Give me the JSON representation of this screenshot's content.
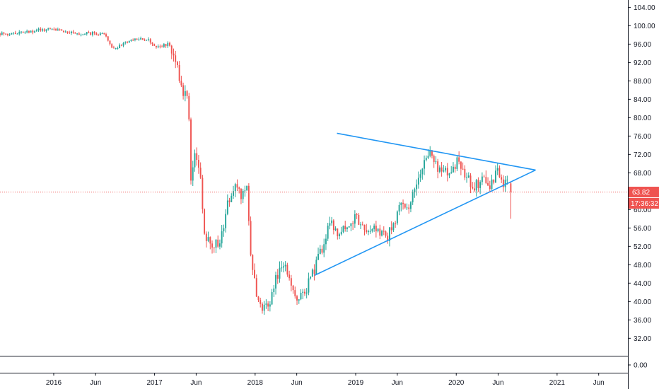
{
  "colors": {
    "up": "#26a69a",
    "down": "#ef5350",
    "trendline": "#2196f3",
    "price_line": "#ef5350",
    "axis_line": "#131722",
    "background": "#ffffff"
  },
  "chart_data": {
    "type": "candlestick",
    "x_axis": {
      "min": "2015-06-20",
      "max": "2021-09-15",
      "ticks": [
        {
          "date": "2016-01-01",
          "label": "2016"
        },
        {
          "date": "2016-06-01",
          "label": "Jun"
        },
        {
          "date": "2017-01-01",
          "label": "2017"
        },
        {
          "date": "2017-06-01",
          "label": "Jun"
        },
        {
          "date": "2018-01-01",
          "label": "2018"
        },
        {
          "date": "2018-06-01",
          "label": "Jun"
        },
        {
          "date": "2019-01-01",
          "label": "2019"
        },
        {
          "date": "2019-06-01",
          "label": "Jun"
        },
        {
          "date": "2020-01-01",
          "label": "2020"
        },
        {
          "date": "2020-06-01",
          "label": "Jun"
        },
        {
          "date": "2021-01-01",
          "label": "2021"
        },
        {
          "date": "2021-06-01",
          "label": "Jun"
        }
      ]
    },
    "y_axis": {
      "range": [
        28.2,
        105.6
      ],
      "ticks": [
        "104.00",
        "100.00",
        "96.00",
        "92.00",
        "88.00",
        "84.00",
        "80.00",
        "76.00",
        "72.00",
        "68.00",
        "64.00",
        "60.00",
        "56.00",
        "52.00",
        "48.00",
        "44.00",
        "40.00",
        "36.00",
        "32.00"
      ]
    },
    "sub_axis": {
      "tick": "0.00"
    },
    "last_price": {
      "value": 63.82,
      "label": "63.82",
      "countdown": "17:36:32"
    },
    "trendlines": [
      {
        "name": "upper",
        "from": {
          "date": "2018-10-25",
          "value": 76.6
        },
        "to": {
          "date": "2020-10-15",
          "value": 68.6
        }
      },
      {
        "name": "lower",
        "from": {
          "date": "2018-08-05",
          "value": 45.7
        },
        "to": {
          "date": "2020-10-15",
          "value": 68.6
        }
      }
    ],
    "anchors": [
      [
        "2015-06-20",
        98.3
      ],
      [
        "2015-08-01",
        98.3
      ],
      [
        "2015-10-01",
        98.7
      ],
      [
        "2015-12-01",
        99.2
      ],
      [
        "2016-02-01",
        99.0
      ],
      [
        "2016-04-01",
        98.2
      ],
      [
        "2016-06-01",
        98.4
      ],
      [
        "2016-07-10",
        98.0
      ],
      [
        "2016-08-10",
        95.0
      ],
      [
        "2016-10-20",
        97.0
      ],
      [
        "2016-12-10",
        97.2
      ],
      [
        "2017-01-10",
        95.3
      ],
      [
        "2017-03-01",
        96.0
      ],
      [
        "2017-03-25",
        92.0
      ],
      [
        "2017-04-10",
        88.0
      ],
      [
        "2017-04-20",
        84.0
      ],
      [
        "2017-05-10",
        86.0
      ],
      [
        "2017-05-20",
        66.0
      ],
      [
        "2017-05-30",
        72.0
      ],
      [
        "2017-06-20",
        70.0
      ],
      [
        "2017-07-05",
        55.0
      ],
      [
        "2017-07-25",
        53.0
      ],
      [
        "2017-09-01",
        52.0
      ],
      [
        "2017-10-01",
        62.0
      ],
      [
        "2017-11-01",
        65.0
      ],
      [
        "2017-11-20",
        63.0
      ],
      [
        "2017-12-10",
        66.0
      ],
      [
        "2017-12-25",
        47.0
      ],
      [
        "2018-01-10",
        43.0
      ],
      [
        "2018-02-01",
        37.5
      ],
      [
        "2018-03-01",
        40.0
      ],
      [
        "2018-03-25",
        45.0
      ],
      [
        "2018-04-25",
        48.5
      ],
      [
        "2018-05-20",
        42.0
      ],
      [
        "2018-06-15",
        40.0
      ],
      [
        "2018-07-10",
        42.5
      ],
      [
        "2018-08-10",
        47.0
      ],
      [
        "2018-09-10",
        52.0
      ],
      [
        "2018-10-10",
        58.0
      ],
      [
        "2018-11-01",
        54.0
      ],
      [
        "2018-12-15",
        57.0
      ],
      [
        "2019-01-10",
        59.0
      ],
      [
        "2019-02-10",
        54.5
      ],
      [
        "2019-03-20",
        56.0
      ],
      [
        "2019-05-01",
        54.0
      ],
      [
        "2019-06-01",
        57.0
      ],
      [
        "2019-06-25",
        62.0
      ],
      [
        "2019-07-25",
        61.0
      ],
      [
        "2019-08-15",
        66.0
      ],
      [
        "2019-09-20",
        71.0
      ],
      [
        "2019-10-10",
        72.5
      ],
      [
        "2019-11-01",
        69.0
      ],
      [
        "2019-12-10",
        68.0
      ],
      [
        "2020-01-10",
        70.5
      ],
      [
        "2020-02-10",
        68.0
      ],
      [
        "2020-03-10",
        65.0
      ],
      [
        "2020-04-10",
        66.5
      ],
      [
        "2020-05-10",
        65.5
      ],
      [
        "2020-06-05",
        68.5
      ],
      [
        "2020-06-25",
        66.0
      ],
      [
        "2020-07-10",
        66.0
      ]
    ],
    "final_bar": {
      "date": "2020-07-17",
      "open": 65.7,
      "high": 66.0,
      "low": 58.0,
      "close": 63.82
    }
  }
}
